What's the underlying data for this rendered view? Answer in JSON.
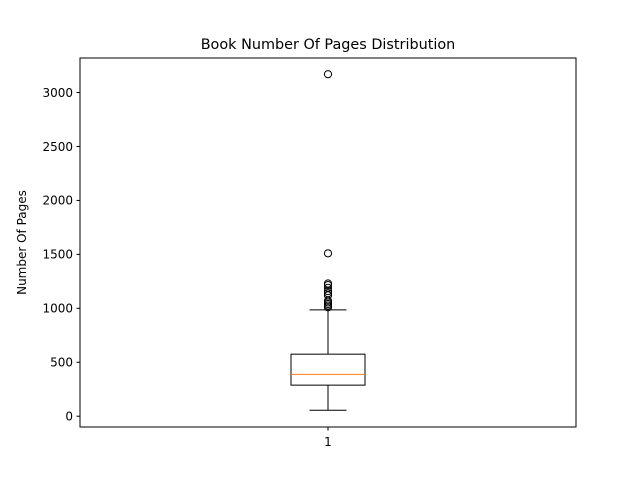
{
  "chart_data": {
    "type": "boxplot",
    "title": "Book Number Of Pages Distribution",
    "xlabel": "",
    "ylabel": "Number Of Pages",
    "categories": [
      "1"
    ],
    "ylim": [
      -100,
      3320
    ],
    "yticks": [
      0,
      500,
      1000,
      1500,
      2000,
      2500,
      3000
    ],
    "ytick_labels": [
      "0",
      "500",
      "1000",
      "1500",
      "2000",
      "2500",
      "3000"
    ],
    "grid": false,
    "boxes": [
      {
        "category": "1",
        "whisker_low": 55,
        "q1": 288,
        "median": 388,
        "q3": 575,
        "whisker_high": 985,
        "outliers": [
          1010,
          1025,
          1040,
          1055,
          1070,
          1120,
          1140,
          1160,
          1190,
          1215,
          1230,
          1510,
          3170
        ]
      }
    ],
    "colors": {
      "box": "#000000",
      "median": "#ff7f0e",
      "outlier": "#000000"
    }
  }
}
